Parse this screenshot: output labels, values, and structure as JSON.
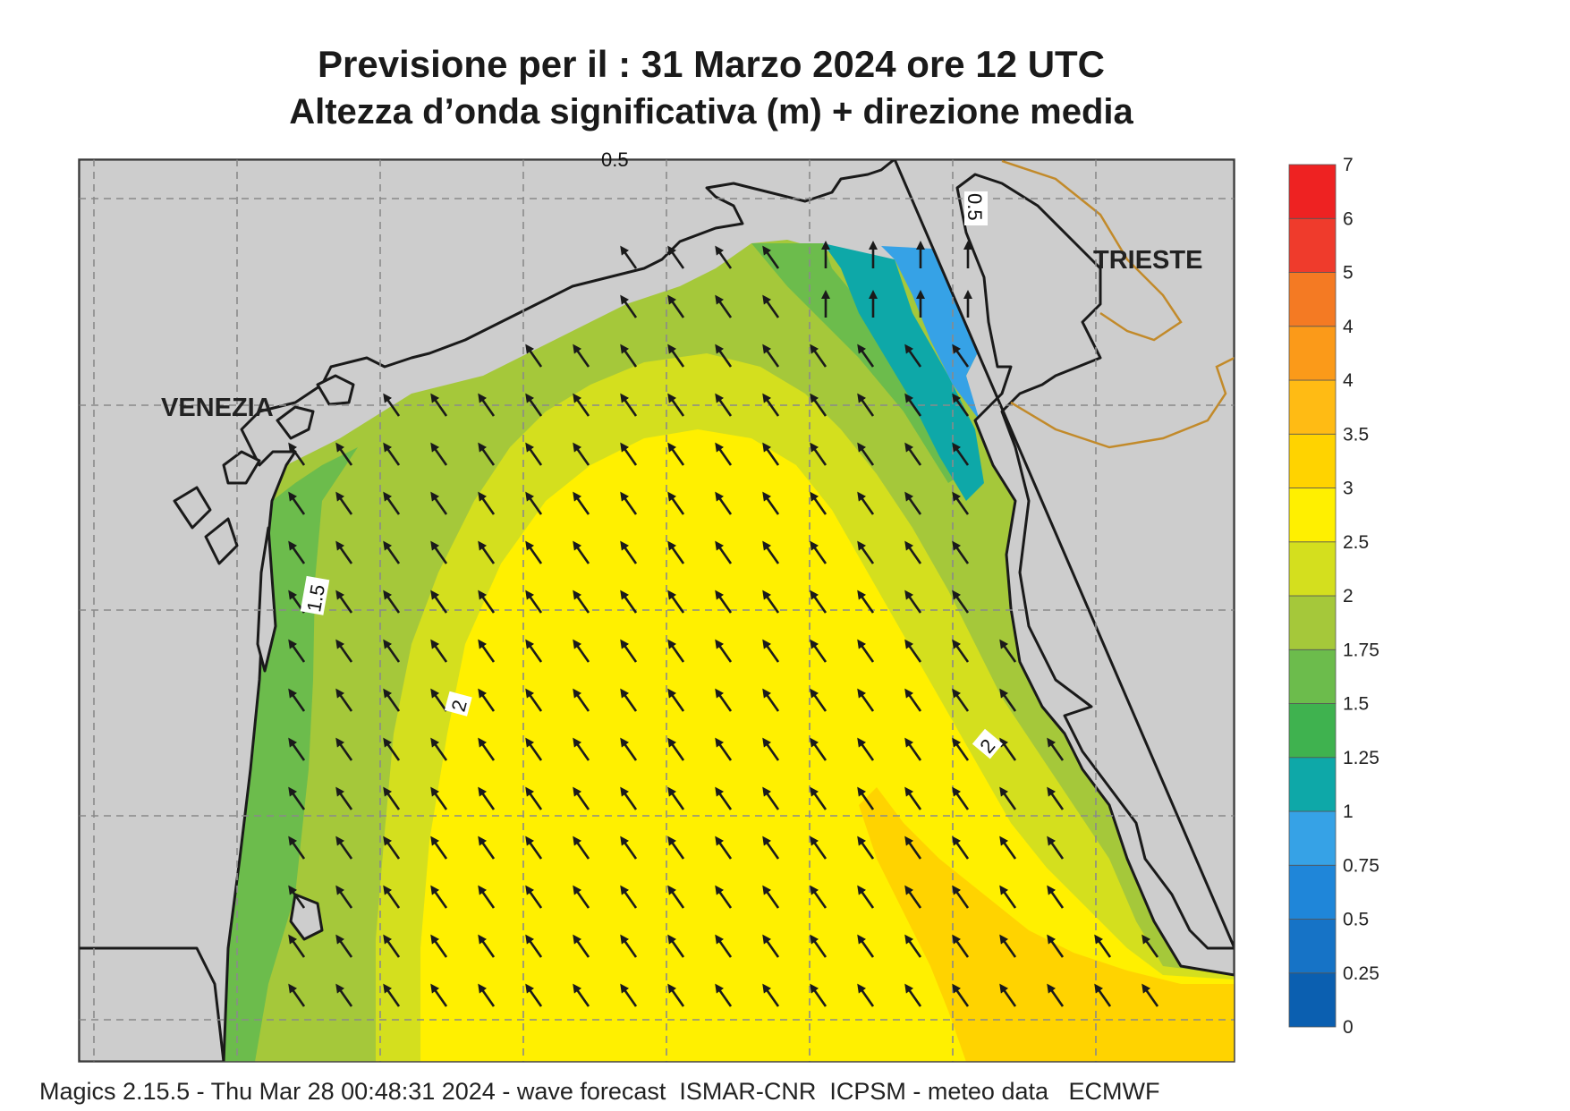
{
  "title": {
    "line1": "Previsione per il  :  31   Marzo   2024   ore 12 UTC",
    "line2": "Altezza d’onda significativa (m) + direzione media"
  },
  "footer": "Magics 2.15.5 - Thu Mar 28 00:48:31 2024 - wave forecast  ISMAR-CNR  ICPSM - meteo data   ECMWF",
  "places": {
    "venezia": "VENEZIA",
    "trieste": "TRIESTE"
  },
  "contour_labels": [
    "0.5",
    "0.5",
    "1.5",
    "2",
    "2"
  ],
  "colorbar": {
    "unit": "m",
    "labels": [
      "0",
      "0.25",
      "0.5",
      "0.75",
      "1",
      "1.25",
      "1.5",
      "1.75",
      "2",
      "2.5",
      "3",
      "3.5",
      "4",
      "4",
      "5",
      "6",
      "7"
    ],
    "colors": [
      "#0b5fb0",
      "#1673c6",
      "#1f86d9",
      "#36a2e6",
      "#0ea8a8",
      "#3fb24f",
      "#6cbc4c",
      "#a5c83a",
      "#d4df1e",
      "#fff000",
      "#ffd300",
      "#ffbb14",
      "#fb9a19",
      "#f47a23",
      "#ef3b2c",
      "#ee2222",
      "#ee1672"
    ]
  },
  "wave_field": {
    "quantity": "Altezza d’onda significativa",
    "unit": "m",
    "mean_direction": "towards north-west"
  },
  "colors": {
    "land": "#cdcdcd",
    "coast": "#1a1a1a",
    "border": "#c28a2a",
    "grid": "#8a8a8a"
  }
}
